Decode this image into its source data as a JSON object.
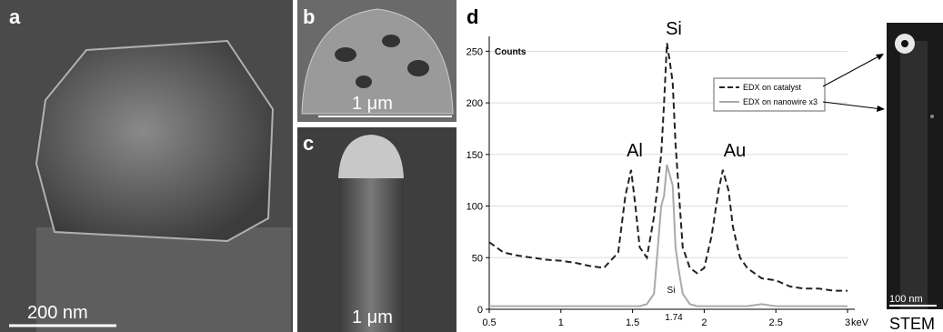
{
  "panels": {
    "a": {
      "label": "a",
      "scale_bar": "200 nm"
    },
    "b": {
      "label": "b",
      "scale_bar": "1 μm"
    },
    "c": {
      "label": "c",
      "scale_bar": "1 μm"
    },
    "stem": {
      "scale_bar": "100 nm",
      "caption": "STEM"
    }
  },
  "chart_data": {
    "type": "line",
    "label": "d",
    "ylabel": "Counts",
    "xlabel": "keV",
    "x": [
      0.5,
      0.6,
      0.7,
      0.8,
      0.9,
      1.0,
      1.1,
      1.2,
      1.3,
      1.4,
      1.45,
      1.49,
      1.52,
      1.55,
      1.6,
      1.65,
      1.7,
      1.72,
      1.74,
      1.76,
      1.78,
      1.8,
      1.82,
      1.85,
      1.9,
      1.95,
      2.0,
      2.05,
      2.1,
      2.13,
      2.17,
      2.2,
      2.25,
      2.3,
      2.4,
      2.5,
      2.6,
      2.7,
      2.8,
      2.9,
      3.0
    ],
    "series": [
      {
        "name": "EDX on catalyst",
        "color": "#222222",
        "dashed": true,
        "values": [
          65,
          55,
          52,
          50,
          48,
          47,
          45,
          42,
          40,
          55,
          110,
          135,
          100,
          60,
          50,
          90,
          150,
          200,
          258,
          240,
          220,
          160,
          120,
          60,
          40,
          35,
          40,
          70,
          115,
          135,
          115,
          80,
          50,
          40,
          30,
          28,
          22,
          20,
          20,
          18,
          18
        ]
      },
      {
        "name": "EDX on nanowire x3",
        "color": "#aaaaaa",
        "dashed": false,
        "values": [
          3,
          3,
          3,
          3,
          3,
          3,
          3,
          3,
          3,
          3,
          3,
          3,
          3,
          3,
          5,
          15,
          100,
          110,
          140,
          130,
          120,
          60,
          40,
          15,
          5,
          3,
          3,
          3,
          3,
          3,
          3,
          3,
          3,
          3,
          5,
          3,
          3,
          3,
          3,
          3,
          3
        ]
      }
    ],
    "xlim": [
      0.5,
      3
    ],
    "ylim": [
      0,
      260
    ],
    "xticks": [
      0.5,
      1,
      1.5,
      2,
      2.5,
      3
    ],
    "yticks": [
      0,
      50,
      100,
      150,
      200,
      250
    ],
    "grid": true,
    "legend": "upper right",
    "annotations": [
      "Si",
      "Al",
      "Au",
      "Si",
      "1.74"
    ]
  }
}
